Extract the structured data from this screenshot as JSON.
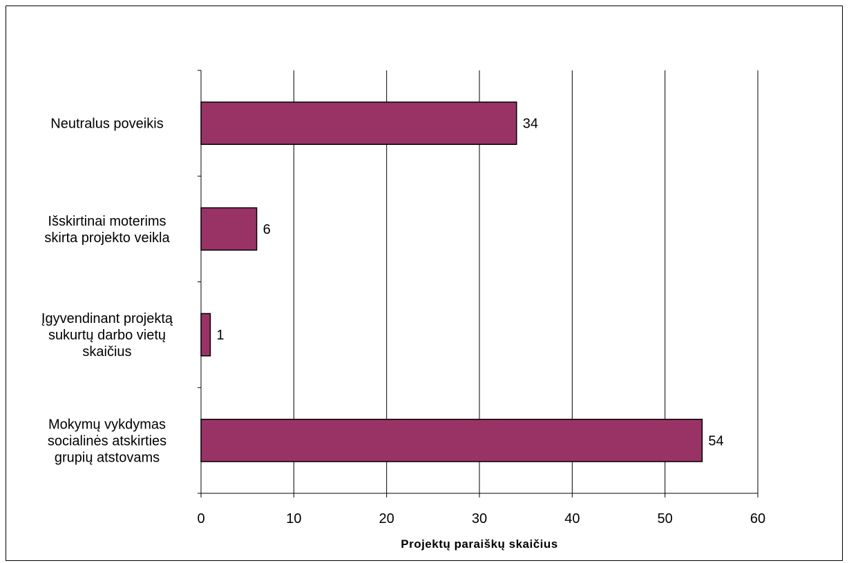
{
  "chart_data": {
    "type": "bar",
    "orientation": "horizontal",
    "categories": [
      "Neutralus poveikis",
      "Išskirtinai moterims skirta projekto veikla",
      "Įgyvendinant projektą sukurtų darbo vietų skaičius",
      "Mokymų vykdymas socialinės atskirties grupių atstovams"
    ],
    "category_lines": [
      [
        "Neutralus poveikis"
      ],
      [
        "Išskirtinai moterims",
        "skirta projekto veikla"
      ],
      [
        "Įgyvendinant projektą",
        "sukurtų darbo vietų",
        "skaičius"
      ],
      [
        "Mokymų vykdymas",
        "socialinės atskirties",
        "grupių atstovams"
      ]
    ],
    "values": [
      34,
      6,
      1,
      54
    ],
    "data_labels": [
      "34",
      "6",
      "1",
      "54"
    ],
    "xlim": [
      0,
      60
    ],
    "x_ticks": [
      0,
      10,
      20,
      30,
      40,
      50,
      60
    ],
    "x_tick_labels": [
      "0",
      "10",
      "20",
      "30",
      "40",
      "50",
      "60"
    ],
    "xlabel": "Projektų paraiškų skaičius",
    "ylabel": "",
    "title": "",
    "grid": "vertical",
    "legend": "none",
    "bar_color": "#993366",
    "bar_edge_color": "#000000"
  }
}
